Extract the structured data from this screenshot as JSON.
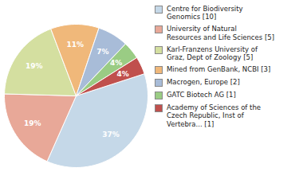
{
  "chart_data": {
    "type": "pie",
    "categories": [
      "Centre for Biodiversity\nGenomics [10]",
      "University of Natural\nResources and Life Sciences [5]",
      "Karl-Franzens University of\nGraz, Dept of Zoology [5]",
      "Mined from GenBank, NCBI [3]",
      "Macrogen, Europe [2]",
      "GATC Biotech AG [1]",
      "Academy of Sciences of the\nCzech Republic, Inst of\nVertebra... [1]"
    ],
    "values": [
      37,
      19,
      19,
      11,
      7,
      4,
      4
    ],
    "value_labels": [
      "37%",
      "19%",
      "19%",
      "11%",
      "7%",
      "4%",
      "4%"
    ],
    "colors": [
      "#c5d8e8",
      "#e8a898",
      "#d4dfa0",
      "#f0b87a",
      "#a8bcd8",
      "#9acc84",
      "#c0504d"
    ],
    "data_labels": true,
    "legend": "right"
  }
}
